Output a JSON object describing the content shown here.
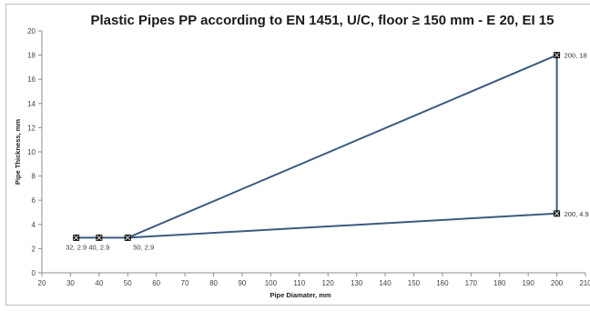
{
  "chart_data": {
    "type": "line",
    "title": "Plastic Pipes PP according to EN 1451, U/C, floor ≥ 150 mm - E 20, EI 15",
    "xlabel": "Pipe Diamater, mm",
    "ylabel": "Pipe Thickness, mm",
    "xlim": [
      20,
      210
    ],
    "ylim": [
      0,
      20
    ],
    "xticks": [
      20,
      30,
      40,
      50,
      60,
      70,
      80,
      90,
      100,
      110,
      120,
      130,
      140,
      150,
      160,
      170,
      180,
      190,
      200,
      210
    ],
    "yticks": [
      0,
      2,
      4,
      6,
      8,
      10,
      12,
      14,
      16,
      18,
      20
    ],
    "grid": false,
    "legend": "none",
    "line_color": "#3b5a80",
    "marker_color": "#111111",
    "series": [
      {
        "points": [
          [
            32,
            2.9
          ],
          [
            40,
            2.9
          ],
          [
            50,
            2.9
          ],
          [
            200,
            18
          ],
          [
            200,
            4.9
          ],
          [
            50,
            2.9
          ]
        ]
      }
    ],
    "markers": [
      [
        32,
        2.9
      ],
      [
        40,
        2.9
      ],
      [
        50,
        2.9
      ],
      [
        200,
        18
      ],
      [
        200,
        4.9
      ]
    ],
    "data_labels": [
      {
        "x": 32,
        "y": 2.9,
        "text": "32, 2.9"
      },
      {
        "x": 40,
        "y": 2.9,
        "text": "40, 2.9"
      },
      {
        "x": 50,
        "y": 2.9,
        "text": "50, 2.9"
      },
      {
        "x": 200,
        "y": 18,
        "text": "200, 18"
      },
      {
        "x": 200,
        "y": 4.9,
        "text": "200, 4.9"
      }
    ]
  }
}
